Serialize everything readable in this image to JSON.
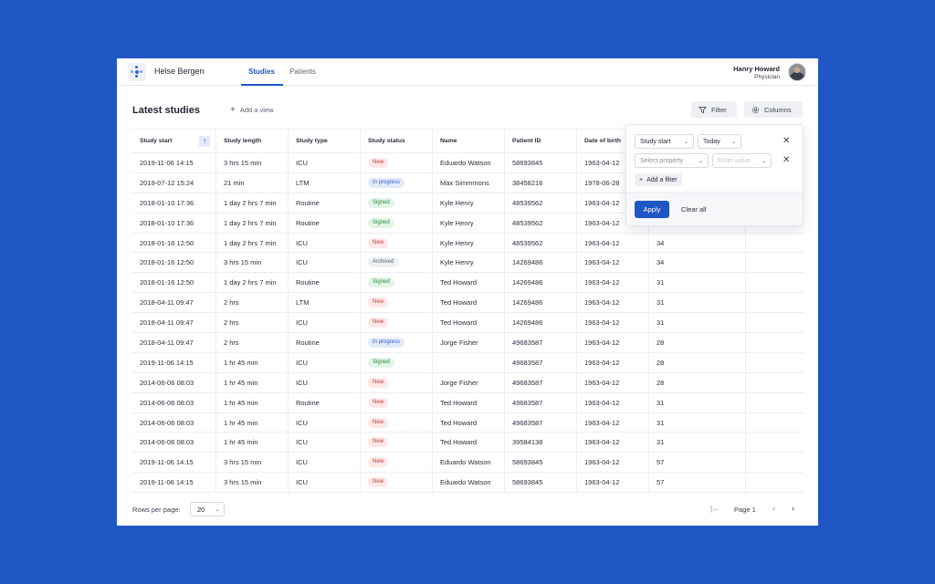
{
  "header": {
    "org_name": "Helse Bergen",
    "tabs": [
      {
        "label": "Studies",
        "active": true
      },
      {
        "label": "Patients",
        "active": false
      }
    ],
    "user": {
      "name": "Hanry Howard",
      "role": "Physician"
    }
  },
  "toolbar": {
    "title": "Latest studies",
    "add_view": "Add a view",
    "filter": "Filter",
    "columns": "Columns"
  },
  "table": {
    "columns": [
      "Study start",
      "Study length",
      "Study type",
      "Study status",
      "Name",
      "Patient ID",
      "Date of birth",
      "",
      ""
    ],
    "rows": [
      [
        "2019-11-06 14:15",
        "3 hrs 15 min",
        "ICU",
        "New",
        "Eduardo Watson",
        "58693845",
        "1963-04-12",
        "",
        ""
      ],
      [
        "2019-07-12 15:24",
        "21 min",
        "LTM",
        "In progress",
        "Max Simmmons",
        "38458216",
        "1978-06-28",
        "",
        ""
      ],
      [
        "2018-01-10 17:36",
        "1 day 2 hrs 7 min",
        "Routine",
        "Signed",
        "Kyle Henry",
        "48539562",
        "1963-04-12",
        "",
        ""
      ],
      [
        "2018-01-10 17:36",
        "1 day 2 hrs 7 min",
        "Routine",
        "Signed",
        "Kyle Henry",
        "48539562",
        "1963-04-12",
        "",
        ""
      ],
      [
        "2018-01-16 12:50",
        "1 day 2 hrs 7 min",
        "ICU",
        "New",
        "Kyle Henry",
        "48539562",
        "1963-04-12",
        "34",
        ""
      ],
      [
        "2018-01-16 12:50",
        "3 hrs 15 min",
        "ICU",
        "Archived",
        "Kyle Henry",
        "14269486",
        "1963-04-12",
        "34",
        ""
      ],
      [
        "2018-01-16 12:50",
        "1 day 2 hrs 7 min",
        "Routine",
        "Signed",
        "Ted Howard",
        "14269486",
        "1963-04-12",
        "31",
        ""
      ],
      [
        "2018-04-11 09:47",
        "2 hrs",
        "LTM",
        "New",
        "Ted Howard",
        "14269486",
        "1963-04-12",
        "31",
        ""
      ],
      [
        "2018-04-11 09:47",
        "2 hrs",
        "ICU",
        "New",
        "Ted Howard",
        "14269486",
        "1963-04-12",
        "31",
        ""
      ],
      [
        "2018-04-11 09:47",
        "2 hrs",
        "Routine",
        "In progress",
        "Jorge Fisher",
        "49683587",
        "1963-04-12",
        "28",
        ""
      ],
      [
        "2019-11-06 14:15",
        "1 hr 45 min",
        "ICU",
        "Signed",
        "",
        "49683587",
        "1963-04-12",
        "28",
        ""
      ],
      [
        "2014-06-06 08:03",
        "1 hr 45 min",
        "ICU",
        "New",
        "Jorge Fisher",
        "49683587",
        "1963-04-12",
        "28",
        ""
      ],
      [
        "2014-06-06 08:03",
        "1 hr 45 min",
        "Routine",
        "New",
        "Ted Howard",
        "49683587",
        "1963-04-12",
        "31",
        ""
      ],
      [
        "2014-06-06 08:03",
        "1 hr 45 min",
        "ICU",
        "New",
        "Ted Howard",
        "49683587",
        "1963-04-12",
        "31",
        ""
      ],
      [
        "2014-06-06 08:03",
        "1 hr 45 min",
        "ICU",
        "New",
        "Ted Howard",
        "39584138",
        "1963-04-12",
        "31",
        ""
      ],
      [
        "2019-11-06 14:15",
        "3 hrs 15 min",
        "ICU",
        "New",
        "Eduardo Watson",
        "58693845",
        "1963-04-12",
        "57",
        ""
      ],
      [
        "2019-11-06 14:15",
        "3 hrs 15 min",
        "ICU",
        "New",
        "Eduardo Watson",
        "58693845",
        "1963-04-12",
        "57",
        ""
      ]
    ]
  },
  "footer": {
    "rows_per_page_label": "Rows per page:",
    "rows_per_page_value": "20",
    "page_label": "Page 1"
  },
  "filter_panel": {
    "row1_property": "Study start",
    "row1_value": "Today",
    "row2_property_placeholder": "Select property",
    "row2_value_placeholder": "Enter value",
    "add_filter": "Add a filter",
    "apply": "Apply",
    "clear_all": "Clear all"
  },
  "colors": {
    "background": "#1f56c4",
    "accent": "#1f56c4"
  }
}
